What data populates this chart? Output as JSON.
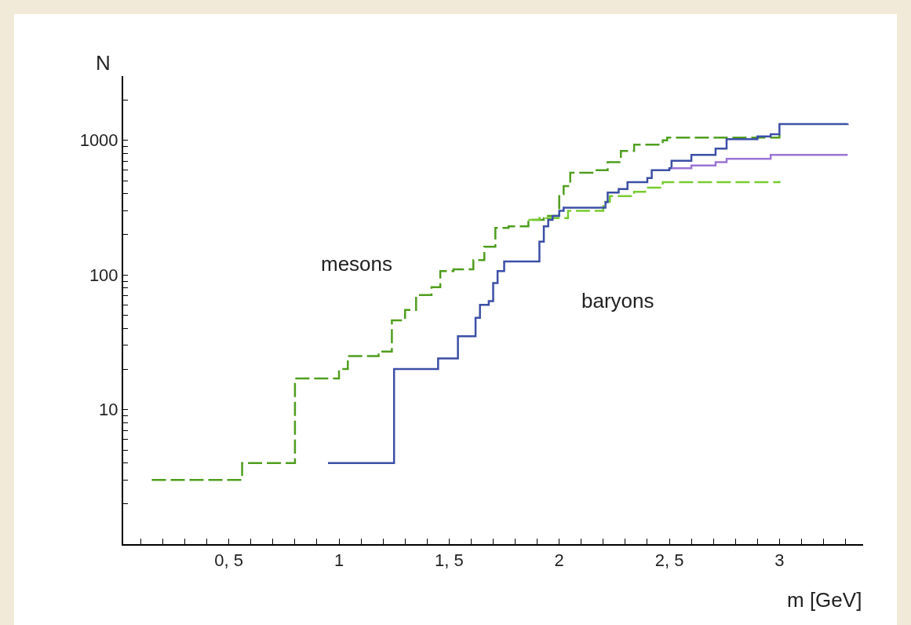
{
  "chart_data": {
    "type": "step",
    "xlabel": "m [GeV]",
    "ylabel": "N",
    "log": "y",
    "grid": false,
    "legend": false,
    "xlim": [
      0.02,
      3.38
    ],
    "ylim": [
      1,
      3000
    ],
    "xticks": [
      {
        "value": 0.1,
        "label": null
      },
      {
        "value": 0.2,
        "label": null
      },
      {
        "value": 0.3,
        "label": null
      },
      {
        "value": 0.4,
        "label": null
      },
      {
        "value": 0.5,
        "label": "0, 5"
      },
      {
        "value": 0.6,
        "label": null
      },
      {
        "value": 0.7,
        "label": null
      },
      {
        "value": 0.8,
        "label": null
      },
      {
        "value": 0.9,
        "label": null
      },
      1,
      {
        "value": 1.1,
        "label": null
      },
      {
        "value": 1.2,
        "label": null
      },
      {
        "value": 1.3,
        "label": null
      },
      {
        "value": 1.4,
        "label": null
      },
      {
        "value": 1.5,
        "label": "1, 5"
      },
      {
        "value": 1.6,
        "label": null
      },
      {
        "value": 1.7,
        "label": null
      },
      {
        "value": 1.8,
        "label": null
      },
      {
        "value": 1.9,
        "label": null
      },
      2,
      {
        "value": 2.1,
        "label": null
      },
      {
        "value": 2.2,
        "label": null
      },
      {
        "value": 2.3,
        "label": null
      },
      {
        "value": 2.4,
        "label": null
      },
      {
        "value": 2.5,
        "label": "2, 5"
      },
      {
        "value": 2.6,
        "label": null
      },
      {
        "value": 2.7,
        "label": null
      },
      {
        "value": 2.8,
        "label": null
      },
      {
        "value": 2.9,
        "label": null
      },
      3,
      {
        "value": 3.1,
        "label": null
      },
      {
        "value": 3.2,
        "label": null
      },
      {
        "value": 3.3,
        "label": null
      }
    ],
    "yticks": [
      {
        "value": 2,
        "label": null
      },
      {
        "value": 3,
        "label": null
      },
      {
        "value": 4,
        "label": null
      },
      {
        "value": 5,
        "label": null
      },
      {
        "value": 6,
        "label": null
      },
      {
        "value": 7,
        "label": null
      },
      {
        "value": 8,
        "label": null
      },
      {
        "value": 9,
        "label": null
      },
      10,
      {
        "value": 20,
        "label": null
      },
      {
        "value": 30,
        "label": null
      },
      {
        "value": 40,
        "label": null
      },
      {
        "value": 50,
        "label": null
      },
      {
        "value": 60,
        "label": null
      },
      {
        "value": 70,
        "label": null
      },
      {
        "value": 80,
        "label": null
      },
      {
        "value": 90,
        "label": null
      },
      100,
      {
        "value": 200,
        "label": null
      },
      {
        "value": 300,
        "label": null
      },
      {
        "value": 400,
        "label": null
      },
      {
        "value": 500,
        "label": null
      },
      {
        "value": 600,
        "label": null
      },
      {
        "value": 700,
        "label": null
      },
      {
        "value": 800,
        "label": null
      },
      {
        "value": 900,
        "label": null
      },
      1000,
      {
        "value": 2000,
        "label": null
      }
    ],
    "series": [
      {
        "name": "mesons",
        "color": "#4f9e1f",
        "line_style": "dashed",
        "x": [
          0.15,
          0.56,
          0.8,
          1.0,
          1.04,
          1.18,
          1.24,
          1.3,
          1.35,
          1.42,
          1.46,
          1.52,
          1.61,
          1.66,
          1.71,
          1.77,
          1.86,
          1.93,
          2.0,
          2.02,
          2.05,
          2.16,
          2.22,
          2.28,
          2.34,
          2.47,
          2.49,
          3.0
        ],
        "values": [
          3,
          4,
          17,
          20,
          25,
          27,
          46,
          55,
          71,
          81,
          107,
          110,
          129,
          162,
          224,
          230,
          257,
          275,
          398,
          457,
          575,
          600,
          690,
          835,
          930,
          1000,
          1050,
          1100
        ]
      },
      {
        "name": null,
        "color": "#78cc30",
        "line_style": "dashed",
        "x": [
          1.86,
          1.91,
          2.04,
          2.2,
          2.23,
          2.34,
          2.39,
          2.47,
          3.0
        ],
        "values": [
          257,
          265,
          300,
          350,
          385,
          415,
          445,
          490,
          500
        ]
      },
      {
        "name": "baryons",
        "color": "#3c4fa6",
        "line_style": "solid",
        "x": [
          0.95,
          1.25,
          1.45,
          1.54,
          1.62,
          1.64,
          1.68,
          1.7,
          1.72,
          1.75,
          1.91,
          1.93,
          1.95,
          1.97,
          2.0,
          2.02,
          2.21,
          2.22,
          2.27,
          2.31,
          2.4,
          2.42,
          2.5,
          2.51,
          2.6,
          2.71,
          2.76,
          2.9,
          2.96,
          3.0,
          3.31
        ],
        "values": [
          4,
          20,
          24,
          35,
          48,
          60,
          64,
          87,
          107,
          126,
          177,
          230,
          257,
          275,
          300,
          316,
          347,
          410,
          435,
          490,
          525,
          600,
          620,
          705,
          780,
          870,
          1020,
          1070,
          1110,
          1320,
          1330
        ]
      },
      {
        "name": null,
        "color": "#9a74d6",
        "line_style": "solid",
        "x": [
          2.51,
          2.6,
          2.71,
          2.76,
          2.96,
          3.31
        ],
        "values": [
          620,
          650,
          690,
          730,
          780,
          780
        ]
      }
    ]
  }
}
